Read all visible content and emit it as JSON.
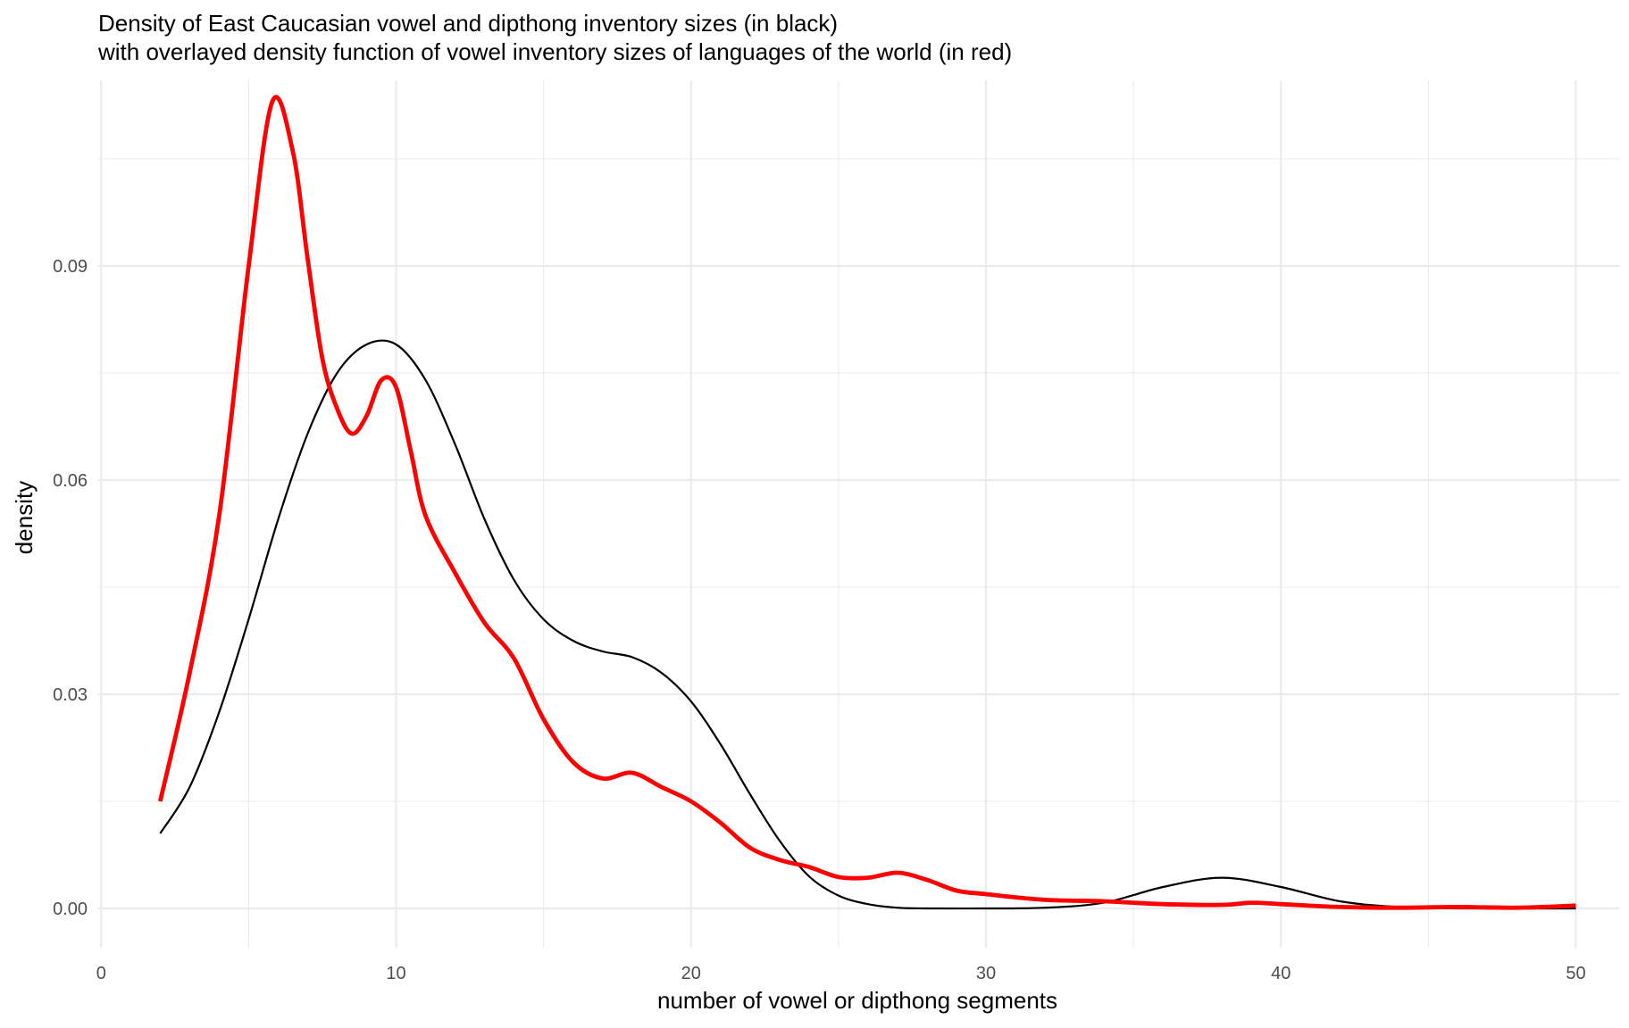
{
  "chart_data": {
    "type": "line",
    "title": "Density of East Caucasian vowel and dipthong inventory sizes (in black)",
    "subtitle": "with overlayed density function of vowel inventory sizes of languages of the world (in red)",
    "xlabel": "number of vowel or dipthong segments",
    "ylabel": "density",
    "xlim": [
      -0.1,
      51.5
    ],
    "ylim": [
      -0.0055,
      0.116
    ],
    "x_ticks": [
      0,
      10,
      20,
      30,
      40,
      50
    ],
    "x_tick_labels": [
      "0",
      "10",
      "20",
      "30",
      "40",
      "50"
    ],
    "y_ticks": [
      0.0,
      0.03,
      0.06,
      0.09
    ],
    "y_tick_labels": [
      "0.00",
      "0.03",
      "0.06",
      "0.09"
    ],
    "grid": true,
    "series": [
      {
        "color": "#000000",
        "values": [
          [
            2,
            0.0105
          ],
          [
            3,
            0.017
          ],
          [
            4,
            0.0275
          ],
          [
            5,
            0.0405
          ],
          [
            6,
            0.0545
          ],
          [
            7,
            0.0665
          ],
          [
            8,
            0.075
          ],
          [
            9,
            0.079
          ],
          [
            10,
            0.079
          ],
          [
            11,
            0.074
          ],
          [
            12,
            0.065
          ],
          [
            13,
            0.0545
          ],
          [
            14,
            0.046
          ],
          [
            15,
            0.0405
          ],
          [
            16,
            0.0375
          ],
          [
            17,
            0.036
          ],
          [
            18,
            0.0352
          ],
          [
            19,
            0.033
          ],
          [
            20,
            0.029
          ],
          [
            21,
            0.023
          ],
          [
            22,
            0.016
          ],
          [
            23,
            0.0095
          ],
          [
            24,
            0.0045
          ],
          [
            25,
            0.0018
          ],
          [
            26,
            0.0006
          ],
          [
            27,
            0.0001
          ],
          [
            28,
            0.0
          ],
          [
            30,
            0.0
          ],
          [
            32,
            0.0001
          ],
          [
            34,
            0.0008
          ],
          [
            36,
            0.003
          ],
          [
            38,
            0.0043
          ],
          [
            40,
            0.003
          ],
          [
            42,
            0.001
          ],
          [
            44,
            0.0002
          ],
          [
            46,
            0.0
          ],
          [
            50,
            0.0
          ]
        ]
      },
      {
        "color": "#ff0000",
        "values": [
          [
            2,
            0.015
          ],
          [
            3,
            0.033
          ],
          [
            4,
            0.055
          ],
          [
            5,
            0.09
          ],
          [
            5.8,
            0.113
          ],
          [
            6.5,
            0.106
          ],
          [
            7,
            0.091
          ],
          [
            7.5,
            0.077
          ],
          [
            8,
            0.07
          ],
          [
            8.5,
            0.0665
          ],
          [
            9,
            0.069
          ],
          [
            9.5,
            0.074
          ],
          [
            10,
            0.073
          ],
          [
            10.5,
            0.064
          ],
          [
            11,
            0.055
          ],
          [
            12,
            0.047
          ],
          [
            13,
            0.04
          ],
          [
            14,
            0.035
          ],
          [
            15,
            0.0265
          ],
          [
            16,
            0.0205
          ],
          [
            17,
            0.0182
          ],
          [
            18,
            0.019
          ],
          [
            19,
            0.017
          ],
          [
            20,
            0.015
          ],
          [
            21,
            0.012
          ],
          [
            22,
            0.0085
          ],
          [
            23,
            0.0068
          ],
          [
            24,
            0.0058
          ],
          [
            25,
            0.0044
          ],
          [
            26,
            0.0043
          ],
          [
            27,
            0.005
          ],
          [
            28,
            0.004
          ],
          [
            29,
            0.0025
          ],
          [
            30,
            0.002
          ],
          [
            32,
            0.0012
          ],
          [
            34,
            0.001
          ],
          [
            36,
            0.0006
          ],
          [
            38,
            0.0005
          ],
          [
            39,
            0.0008
          ],
          [
            40,
            0.0006
          ],
          [
            42,
            0.0002
          ],
          [
            44,
            0.0001
          ],
          [
            46,
            0.0002
          ],
          [
            48,
            0.0001
          ],
          [
            50,
            0.0004
          ]
        ]
      }
    ]
  }
}
